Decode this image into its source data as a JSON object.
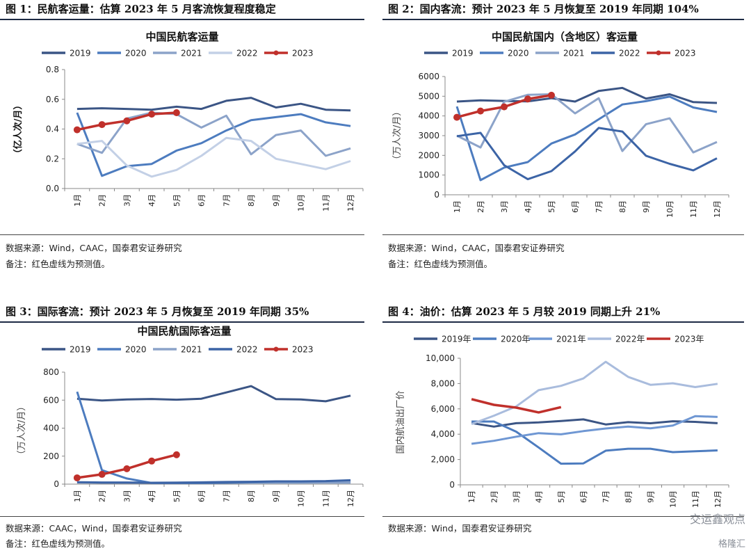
{
  "panels": [
    {
      "title": "图 1：民航客运量：估算 2023 年 5 月客流恢复程度稳定",
      "source": "数据来源：Wind，CAAC，国泰君安证券研究",
      "note": "备注：红色虚线为预测值。"
    },
    {
      "title": "图 2：国内客流：预计 2023 年 5 月恢复至 2019 年同期 104%",
      "source": "数据来源：Wind，CAAC，国泰君安证券研究",
      "note": "备注：红色虚线为预测值。"
    },
    {
      "title": "图 3：国际客流：预计 2023 年 5 月恢复至 2019 年同期 35%",
      "source": "数据来源：CAAC，Wind，国泰君安证券研究",
      "note": "备注：红色虚线为预测值。"
    },
    {
      "title": "图 4：油价：估算 2023 年 5 月较 2019 同期上升 21%",
      "source": "数据来源：Wind，国泰君安证券研究",
      "note": ""
    }
  ],
  "watermark": {
    "text": "交运鑫观点",
    "brand": "格隆汇"
  },
  "colors": {
    "c2019": "#3b5585",
    "c2020": "#4d7cbf",
    "c2021": "#8ca3c9",
    "c2022_light": "#c3d0e6",
    "c2022_dark": "#3c64a6",
    "c2023": "#c0302b",
    "c2021_oil": "#6f97d3",
    "c2022_oil": "#a9bcdd"
  },
  "chart_data": [
    {
      "type": "line",
      "title": "中国民航客运量",
      "ylabel": "（亿人次/月）",
      "categories": [
        "1月",
        "2月",
        "3月",
        "4月",
        "5月",
        "6月",
        "7月",
        "8月",
        "9月",
        "10月",
        "11月",
        "12月"
      ],
      "ylim": [
        0,
        0.8
      ],
      "yticks": [
        "0.0",
        "0.2",
        "0.4",
        "0.6",
        "0.8"
      ],
      "legend_position": "top",
      "series": [
        {
          "name": "2019",
          "color_key": "c2019",
          "values": [
            0.535,
            0.54,
            0.535,
            0.53,
            0.55,
            0.535,
            0.59,
            0.61,
            0.545,
            0.57,
            0.53,
            0.525
          ]
        },
        {
          "name": "2020",
          "color_key": "c2020",
          "values": [
            0.51,
            0.085,
            0.15,
            0.165,
            0.255,
            0.305,
            0.39,
            0.46,
            0.48,
            0.5,
            0.445,
            0.42
          ]
        },
        {
          "name": "2021",
          "color_key": "c2021",
          "values": [
            0.3,
            0.24,
            0.47,
            0.51,
            0.5,
            0.41,
            0.49,
            0.23,
            0.36,
            0.39,
            0.22,
            0.27
          ]
        },
        {
          "name": "2022",
          "color_key": "c2022_light",
          "values": [
            0.3,
            0.32,
            0.155,
            0.08,
            0.125,
            0.22,
            0.34,
            0.32,
            0.2,
            0.165,
            0.13,
            0.185
          ]
        },
        {
          "name": "2023",
          "color_key": "c2023",
          "marker": true,
          "values": [
            0.395,
            0.43,
            0.455,
            0.5,
            0.51,
            null,
            null,
            null,
            null,
            null,
            null,
            null
          ]
        }
      ]
    },
    {
      "type": "line",
      "title": "中国民航国内（含地区）客运量",
      "ylabel": "（万人次/月）",
      "categories": [
        "1月",
        "2月",
        "3月",
        "4月",
        "5月",
        "6月",
        "7月",
        "8月",
        "9月",
        "10月",
        "11月",
        "12月"
      ],
      "ylim": [
        0,
        6000
      ],
      "yticks": [
        "0",
        "1000",
        "2000",
        "3000",
        "4000",
        "5000",
        "6000"
      ],
      "legend_position": "top",
      "series": [
        {
          "name": "2019",
          "color_key": "c2019",
          "values": [
            4730,
            4790,
            4760,
            4740,
            4900,
            4730,
            5270,
            5420,
            4880,
            5100,
            4700,
            4660
          ]
        },
        {
          "name": "2020",
          "color_key": "c2020",
          "values": [
            4480,
            740,
            1380,
            1660,
            2600,
            3060,
            3830,
            4580,
            4750,
            4980,
            4430,
            4200
          ]
        },
        {
          "name": "2021",
          "color_key": "c2021",
          "values": [
            3000,
            2400,
            4720,
            5070,
            5100,
            4130,
            4900,
            2220,
            3580,
            3880,
            2150,
            2680
          ]
        },
        {
          "name": "2022",
          "color_key": "c2022_dark",
          "values": [
            2970,
            3140,
            1500,
            790,
            1200,
            2200,
            3390,
            3210,
            1980,
            1570,
            1240,
            1850
          ]
        },
        {
          "name": "2023",
          "color_key": "c2023",
          "marker": true,
          "values": [
            3930,
            4250,
            4460,
            4860,
            5050,
            null,
            null,
            null,
            null,
            null,
            null,
            null
          ]
        }
      ]
    },
    {
      "type": "line",
      "title": "中国民航国际客运量",
      "ylabel": "（万人次/月）",
      "categories": [
        "1月",
        "2月",
        "3月",
        "4月",
        "5月",
        "6月",
        "7月",
        "8月",
        "9月",
        "10月",
        "11月",
        "12月"
      ],
      "ylim": [
        0,
        800
      ],
      "yticks": [
        "0",
        "200",
        "400",
        "600",
        "800"
      ],
      "legend_position": "top",
      "series": [
        {
          "name": "2019",
          "color_key": "c2019",
          "values": [
            610,
            598,
            605,
            608,
            603,
            610,
            655,
            700,
            607,
            605,
            592,
            632
          ]
        },
        {
          "name": "2020",
          "color_key": "c2020",
          "values": [
            660,
            100,
            40,
            8,
            8,
            8,
            10,
            12,
            12,
            12,
            12,
            12
          ]
        },
        {
          "name": "2021",
          "color_key": "c2021",
          "values": [
            12,
            10,
            10,
            10,
            12,
            14,
            16,
            16,
            15,
            15,
            14,
            15
          ]
        },
        {
          "name": "2022",
          "color_key": "c2022_dark",
          "values": [
            14,
            12,
            12,
            10,
            10,
            12,
            15,
            17,
            20,
            20,
            22,
            28
          ]
        },
        {
          "name": "2023",
          "color_key": "c2023",
          "marker": true,
          "values": [
            45,
            70,
            110,
            165,
            210,
            null,
            null,
            null,
            null,
            null,
            null,
            null
          ]
        }
      ]
    },
    {
      "type": "line",
      "title": "",
      "ylabel": "国内航油出厂价",
      "categories": [
        "1月",
        "2月",
        "3月",
        "4月",
        "5月",
        "6月",
        "7月",
        "8月",
        "9月",
        "10月",
        "11月",
        "12月"
      ],
      "ylim": [
        0,
        10000
      ],
      "yticks": [
        "0",
        "2,000",
        "4,000",
        "6,000",
        "8,000",
        "10,000"
      ],
      "legend_position": "top",
      "series": [
        {
          "name": "2019年",
          "color_key": "c2019",
          "values": [
            4880,
            4600,
            4870,
            4930,
            5040,
            5170,
            4770,
            4950,
            4860,
            5020,
            4970,
            4870
          ]
        },
        {
          "name": "2020年",
          "color_key": "c2020",
          "values": [
            5000,
            5000,
            4200,
            2950,
            1670,
            1690,
            2700,
            2850,
            2850,
            2580,
            2650,
            2720
          ]
        },
        {
          "name": "2021年",
          "color_key": "c2021_oil",
          "values": [
            3240,
            3480,
            3800,
            4080,
            3990,
            4240,
            4450,
            4600,
            4460,
            4680,
            5430,
            5360
          ]
        },
        {
          "name": "2022年",
          "color_key": "c2022_oil",
          "values": [
            4800,
            5460,
            6200,
            7480,
            7820,
            8400,
            9720,
            8530,
            7900,
            8020,
            7720,
            7980
          ]
        },
        {
          "name": "2023年",
          "color_key": "c2023",
          "values": [
            6770,
            6320,
            6100,
            5720,
            6140,
            null,
            null,
            null,
            null,
            null,
            null,
            null
          ]
        }
      ]
    }
  ]
}
